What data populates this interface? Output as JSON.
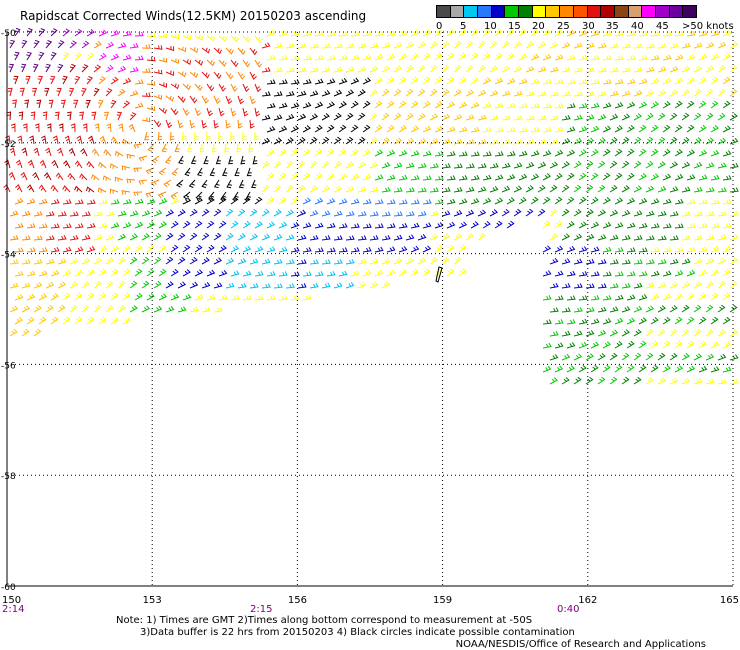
{
  "title": "Rapidscat Corrected Winds(12.5KM) 20150203 ascending",
  "legend": {
    "colors": [
      "#4a4a4a",
      "#a8a8a8",
      "#00c8f0",
      "#2878ff",
      "#0000c8",
      "#00c800",
      "#008000",
      "#ffff00",
      "#ffc800",
      "#ff8800",
      "#ff5000",
      "#e01010",
      "#b00000",
      "#8b4513",
      "#d8a070",
      "#ff00ff",
      "#a000c8",
      "#6a00a0",
      "#400060"
    ],
    "labels": [
      "0",
      "5",
      "10",
      "15",
      "20",
      "25",
      "30",
      "35",
      "40",
      "45",
      ">50 knots"
    ]
  },
  "axes": {
    "lon_ticks": [
      "150",
      "153",
      "156",
      "159",
      "162",
      "165"
    ],
    "lat_ticks": [
      "-50",
      "-52",
      "-54",
      "-56",
      "-58",
      "-60"
    ],
    "lon_range": [
      150,
      165
    ],
    "lat_range": [
      -50,
      -60
    ]
  },
  "pass_times": [
    "2:14",
    "2:15",
    "0:40"
  ],
  "notes": [
    "Note: 1) Times are GMT 2)Times along bottom correspond to measurement at -50S",
    "3)Data buffer is 22 hrs from 20150203 4) Black circles indicate possible contamination"
  ],
  "credit": "NOAA/NESDIS/Office of Research and Applications",
  "icons": [
    "wind-barb-icon"
  ]
}
